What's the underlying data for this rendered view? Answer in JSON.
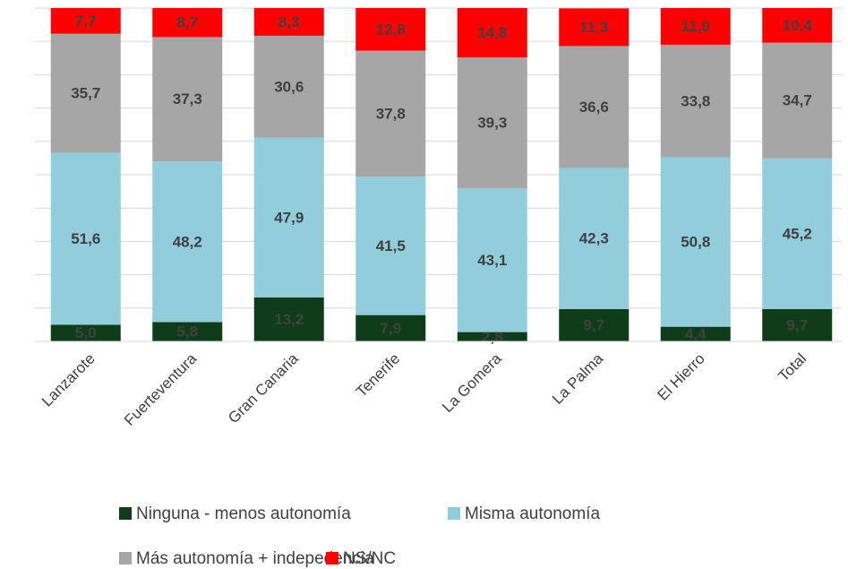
{
  "chart_data": {
    "type": "stacked_bar",
    "categories": [
      "Lanzarote",
      "Fuerteventura",
      "Gran Canaria",
      "Tenerife",
      "La Gomera",
      "La Palma",
      "El Hierro",
      "Total"
    ],
    "series": [
      {
        "name": "Ninguna - menos autonomía",
        "color": "#0f3d1a",
        "values": [
          5.0,
          5.8,
          13.2,
          7.9,
          2.8,
          9.7,
          4.4,
          9.7
        ],
        "value_labels": [
          "5,0",
          "5,8",
          "13,2",
          "7,9",
          "2,8",
          "9,7",
          "4,4",
          "9,7"
        ]
      },
      {
        "name": "Misma autonomía",
        "color": "#92cddc",
        "values": [
          51.6,
          48.2,
          47.9,
          41.5,
          43.1,
          42.3,
          50.8,
          45.2
        ],
        "value_labels": [
          "51,6",
          "48,2",
          "47,9",
          "41,5",
          "43,1",
          "42,3",
          "50,8",
          "45,2"
        ]
      },
      {
        "name": "Más autonomía + indepedencia",
        "color": "#a6a6a6",
        "values": [
          35.7,
          37.3,
          30.6,
          37.8,
          39.3,
          36.6,
          33.8,
          34.7
        ],
        "value_labels": [
          "35,7",
          "37,3",
          "30,6",
          "37,8",
          "39,3",
          "36,6",
          "33,8",
          "34,7"
        ]
      },
      {
        "name": "NS/NC",
        "color": "#ff0000",
        "values": [
          7.7,
          8.7,
          8.3,
          12.8,
          14.8,
          11.3,
          11.0,
          10.4
        ],
        "value_labels": [
          "7,7",
          "8,7",
          "8,3",
          "12,8",
          "14,8",
          "11,3",
          "11,0",
          "10,4"
        ]
      }
    ],
    "ylim": [
      0,
      100
    ],
    "yticks": [
      0,
      10,
      20,
      30,
      40,
      50,
      60,
      70,
      80,
      90,
      100
    ],
    "grid": true
  }
}
